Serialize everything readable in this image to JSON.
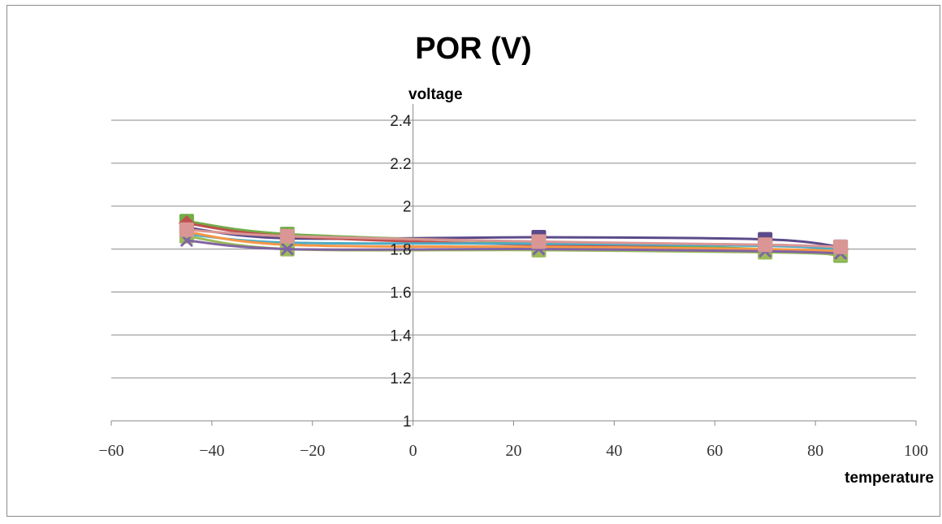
{
  "chart_data": {
    "type": "line",
    "title": "POR (V)",
    "xlabel": "temperature",
    "ylabel": "voltage",
    "xlim": [
      -60,
      100
    ],
    "ylim": [
      1,
      2.4
    ],
    "x_ticks": [
      "−60",
      "−40",
      "−20",
      "0",
      "20",
      "40",
      "60",
      "80",
      "100"
    ],
    "x_tick_values": [
      -60,
      -40,
      -20,
      0,
      20,
      40,
      60,
      80,
      100
    ],
    "y_ticks": [
      "1",
      "1.2",
      "1.4",
      "1.6",
      "1.8",
      "2",
      "2.2",
      "2.4"
    ],
    "y_tick_values": [
      1,
      1.2,
      1.4,
      1.6,
      1.8,
      2,
      2.2,
      2.4
    ],
    "grid": true,
    "legend": "none",
    "x": [
      -45,
      -25,
      25,
      70,
      85
    ],
    "series": [
      {
        "color": "#5b4a8a",
        "marker": "square",
        "values": [
          1.9,
          1.85,
          1.855,
          1.845,
          1.81
        ]
      },
      {
        "color": "#70ad47",
        "marker": "square",
        "values": [
          1.93,
          1.87,
          1.83,
          1.8,
          1.77
        ]
      },
      {
        "color": "#c0504d",
        "marker": "diamond",
        "values": [
          1.92,
          1.86,
          1.82,
          1.82,
          1.8
        ]
      },
      {
        "color": "#4bacc6",
        "marker": "triangle",
        "values": [
          1.87,
          1.83,
          1.825,
          1.815,
          1.8
        ]
      },
      {
        "color": "#f79646",
        "marker": "circle",
        "values": [
          1.88,
          1.82,
          1.81,
          1.8,
          1.79
        ]
      },
      {
        "color": "#9bbb59",
        "marker": "square",
        "values": [
          1.86,
          1.8,
          1.795,
          1.785,
          1.775
        ]
      },
      {
        "color": "#8064a2",
        "marker": "x",
        "values": [
          1.84,
          1.8,
          1.8,
          1.79,
          1.78
        ]
      },
      {
        "color": "#d99694",
        "marker": "square",
        "values": [
          1.89,
          1.86,
          1.835,
          1.82,
          1.81
        ]
      }
    ]
  }
}
